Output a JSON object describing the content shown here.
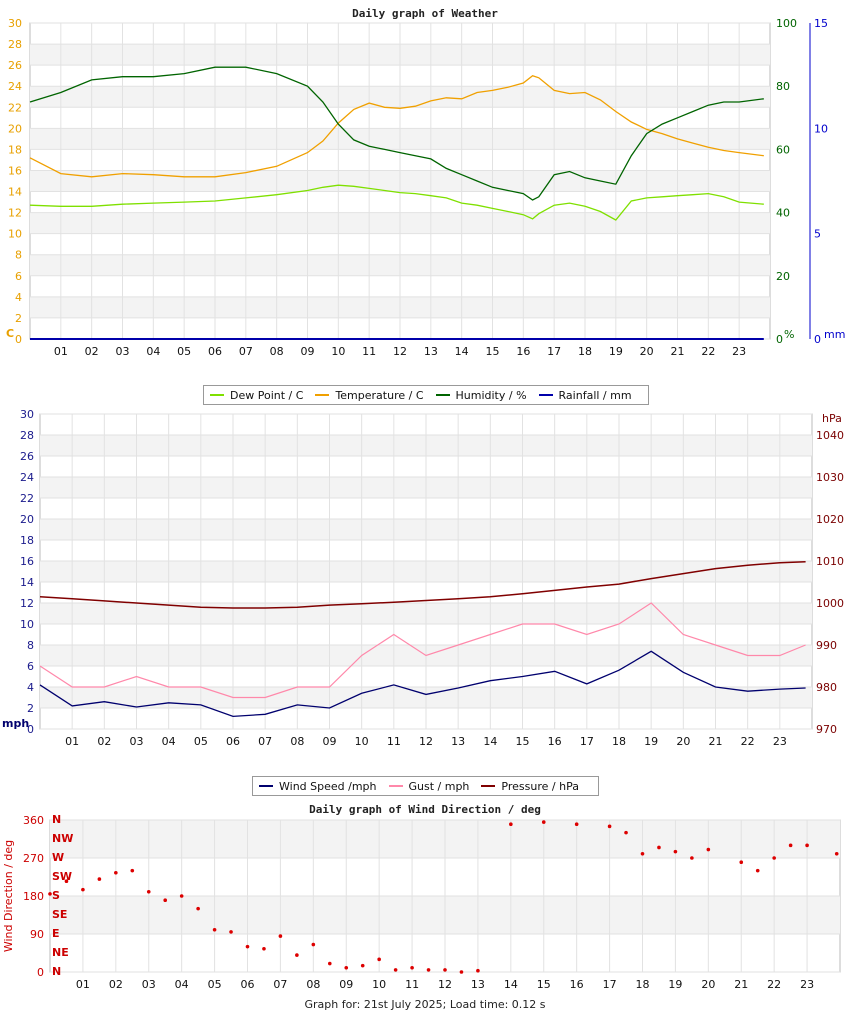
{
  "footer": "Graph for: 21st July 2025; Load time: 0.12 s",
  "chart_data": [
    {
      "type": "line",
      "title": "Daily graph of Weather",
      "x_ticks": [
        "01",
        "02",
        "03",
        "04",
        "05",
        "06",
        "07",
        "08",
        "09",
        "10",
        "11",
        "12",
        "13",
        "14",
        "15",
        "16",
        "17",
        "18",
        "19",
        "20",
        "21",
        "22",
        "23"
      ],
      "y_left": {
        "unit": "C",
        "range": [
          0,
          30
        ],
        "ticks": [
          "0",
          "2",
          "4",
          "6",
          "8",
          "10",
          "12",
          "14",
          "16",
          "18",
          "20",
          "22",
          "24",
          "26",
          "28",
          "30"
        ],
        "color": "#e8a000"
      },
      "y_right_humidity": {
        "unit": "%",
        "range": [
          0,
          100
        ],
        "ticks": [
          "0",
          "20",
          "40",
          "60",
          "80",
          "100"
        ],
        "color": "#006400"
      },
      "y_right_rain": {
        "unit": "mm",
        "range": [
          0,
          15
        ],
        "ticks": [
          "0",
          "5",
          "10",
          "15"
        ],
        "color": "#0000cc"
      },
      "legend": [
        {
          "label": "Dew Point / C",
          "color": "#7fe000"
        },
        {
          "label": "Temperature / C",
          "color": "#f0a000"
        },
        {
          "label": "Humidity / %",
          "color": "#006400"
        },
        {
          "label": "Rainfall / mm",
          "color": "#0000aa"
        }
      ],
      "x_hours": [
        0,
        1,
        2,
        3,
        4,
        5,
        6,
        7,
        8,
        9,
        9.5,
        10,
        10.5,
        11,
        11.5,
        12,
        12.5,
        13,
        13.5,
        14,
        14.5,
        15,
        15.5,
        16,
        16.3,
        16.5,
        17,
        17.5,
        18,
        18.5,
        19,
        19.5,
        20,
        20.5,
        21,
        21.5,
        22,
        22.5,
        23,
        23.8
      ],
      "series": [
        {
          "name": "Dew Point",
          "axis": "left",
          "values": [
            12.7,
            12.6,
            12.6,
            12.8,
            12.9,
            13.0,
            13.1,
            13.4,
            13.7,
            14.1,
            14.4,
            14.6,
            14.5,
            14.3,
            14.1,
            13.9,
            13.8,
            13.6,
            13.4,
            12.9,
            12.7,
            12.4,
            12.1,
            11.8,
            11.4,
            11.9,
            12.7,
            12.9,
            12.6,
            12.1,
            11.3,
            13.1,
            13.4,
            13.5,
            13.6,
            13.7,
            13.8,
            13.5,
            13.0,
            12.8
          ]
        },
        {
          "name": "Temperature",
          "axis": "left",
          "values": [
            17.2,
            15.7,
            15.4,
            15.7,
            15.6,
            15.4,
            15.4,
            15.8,
            16.4,
            17.7,
            18.8,
            20.5,
            21.8,
            22.4,
            22.0,
            21.9,
            22.1,
            22.6,
            22.9,
            22.8,
            23.4,
            23.6,
            23.9,
            24.3,
            25.0,
            24.8,
            23.6,
            23.3,
            23.4,
            22.7,
            21.6,
            20.6,
            19.9,
            19.5,
            19.0,
            18.6,
            18.2,
            17.9,
            17.7,
            17.4
          ]
        },
        {
          "name": "Humidity",
          "axis": "humidity",
          "values": [
            75,
            78,
            82,
            83,
            83,
            84,
            86,
            86,
            84,
            80,
            75,
            68,
            63,
            61,
            60,
            59,
            58,
            57,
            54,
            52,
            50,
            48,
            47,
            46,
            44,
            45,
            52,
            53,
            51,
            50,
            49,
            58,
            65,
            68,
            70,
            72,
            74,
            75,
            75,
            76
          ]
        },
        {
          "name": "Rainfall",
          "axis": "rain",
          "values": [
            0,
            0,
            0,
            0,
            0,
            0,
            0,
            0,
            0,
            0,
            0,
            0,
            0,
            0,
            0,
            0,
            0,
            0,
            0,
            0,
            0,
            0,
            0,
            0,
            0,
            0,
            0,
            0,
            0,
            0,
            0,
            0,
            0,
            0,
            0,
            0,
            0,
            0,
            0,
            0
          ]
        }
      ]
    },
    {
      "type": "line",
      "title": "Daily graph of Wind Speed",
      "x_ticks": [
        "01",
        "02",
        "03",
        "04",
        "05",
        "06",
        "07",
        "08",
        "09",
        "10",
        "11",
        "12",
        "13",
        "14",
        "15",
        "16",
        "17",
        "18",
        "19",
        "20",
        "21",
        "22",
        "23"
      ],
      "y_left": {
        "unit": "mph",
        "range": [
          0,
          30
        ],
        "ticks": [
          "0",
          "2",
          "4",
          "6",
          "8",
          "10",
          "12",
          "14",
          "16",
          "18",
          "20",
          "22",
          "24",
          "26",
          "28",
          "30"
        ],
        "color": "#00006e"
      },
      "y_right": {
        "unit": "hPa",
        "range": [
          970,
          1045
        ],
        "ticks": [
          "970",
          "980",
          "990",
          "1000",
          "1010",
          "1020",
          "1030",
          "1040"
        ],
        "color": "#7a0000"
      },
      "legend": [
        {
          "label": "Wind Speed /mph",
          "color": "#00006e"
        },
        {
          "label": "Gust / mph",
          "color": "#ff88aa"
        },
        {
          "label": "Pressure / hPa",
          "color": "#800000"
        }
      ],
      "x_hours": [
        0,
        1,
        2,
        3,
        4,
        5,
        6,
        7,
        8,
        9,
        10,
        11,
        12,
        13,
        14,
        15,
        16,
        17,
        18,
        19,
        20,
        21,
        22,
        23,
        23.8
      ],
      "series": [
        {
          "name": "Wind Speed",
          "axis": "left",
          "values": [
            4.2,
            2.2,
            2.6,
            2.1,
            2.5,
            2.3,
            1.2,
            1.4,
            2.3,
            2.0,
            3.4,
            4.2,
            3.3,
            3.9,
            4.6,
            5.0,
            5.5,
            4.3,
            5.6,
            7.4,
            5.4,
            4.0,
            3.6,
            3.8,
            3.9
          ]
        },
        {
          "name": "Gust",
          "axis": "left",
          "values": [
            6,
            4,
            4,
            5,
            4,
            4,
            3,
            3,
            4,
            4,
            7,
            9,
            7,
            8,
            9,
            10,
            10,
            9,
            10,
            12,
            9,
            8,
            7,
            7,
            8
          ]
        },
        {
          "name": "Pressure",
          "axis": "right",
          "values": [
            1001.5,
            1001,
            1000.5,
            1000,
            999.5,
            999,
            998.8,
            998.8,
            999,
            999.5,
            999.8,
            1000.2,
            1000.6,
            1001,
            1001.5,
            1002.2,
            1003,
            1003.8,
            1004.5,
            1005.8,
            1007,
            1008.2,
            1009,
            1009.6,
            1009.8
          ]
        }
      ]
    },
    {
      "type": "scatter",
      "title": "Daily graph of Wind Direction / deg",
      "x_ticks": [
        "01",
        "02",
        "03",
        "04",
        "05",
        "06",
        "07",
        "08",
        "09",
        "10",
        "11",
        "12",
        "13",
        "14",
        "15",
        "16",
        "17",
        "18",
        "19",
        "20",
        "21",
        "22",
        "23"
      ],
      "ylabel": "Wind Direction / deg",
      "y_left": {
        "range": [
          0,
          360
        ],
        "ticks": [
          "0",
          "90",
          "180",
          "270",
          "360"
        ],
        "color": "#cc0000"
      },
      "compass": [
        "N",
        "NE",
        "E",
        "SE",
        "S",
        "SW",
        "W",
        "NW",
        "N"
      ],
      "x_hours": [
        0,
        0.5,
        1,
        1.5,
        2,
        2.5,
        3,
        3.5,
        4,
        4.5,
        5,
        5.5,
        6,
        6.5,
        7,
        7.5,
        8,
        8.5,
        9,
        9.5,
        10,
        10.5,
        11,
        11.5,
        12,
        12.5,
        13,
        14,
        15,
        16,
        17,
        17.5,
        18,
        18.5,
        19,
        19.5,
        20,
        21,
        21.5,
        22,
        22.5,
        23,
        23.9
      ],
      "values": [
        185,
        215,
        195,
        220,
        235,
        240,
        190,
        170,
        180,
        150,
        100,
        95,
        60,
        55,
        85,
        40,
        65,
        20,
        10,
        15,
        30,
        5,
        10,
        5,
        5,
        0,
        3,
        350,
        355,
        350,
        345,
        330,
        280,
        295,
        285,
        270,
        290,
        260,
        240,
        270,
        300,
        300,
        280
      ]
    }
  ]
}
